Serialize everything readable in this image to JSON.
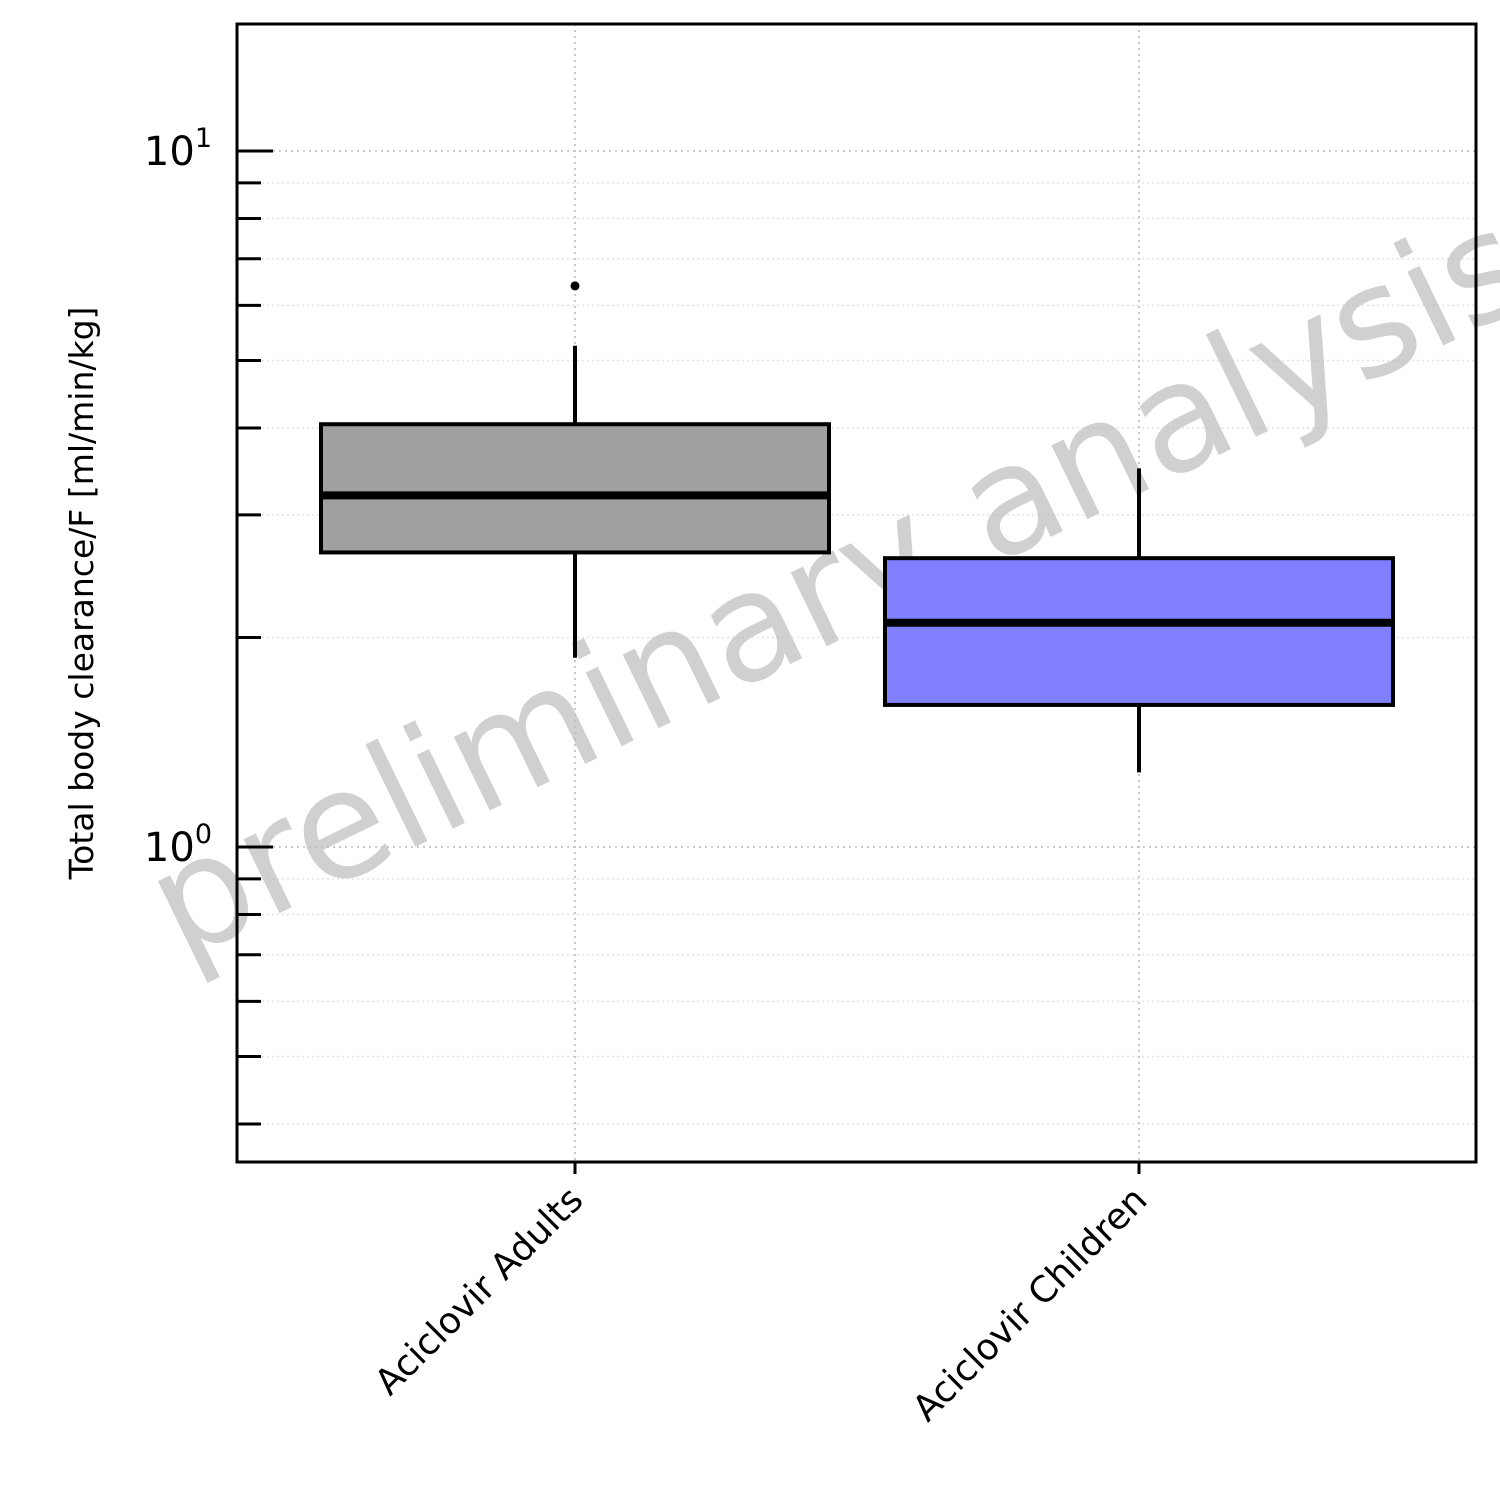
{
  "chart_data": {
    "type": "box",
    "ylabel": "Total body clearance/F [ml/min/kg]",
    "yscale": "log",
    "ylim": [
      0.36,
      17.5
    ],
    "major_ticks": [
      {
        "value": 1,
        "base": "10",
        "exponent": "0"
      },
      {
        "value": 10,
        "base": "10",
        "exponent": "1"
      }
    ],
    "minor_ticks": [
      0.4,
      0.5,
      0.6,
      0.7,
      0.8,
      0.9,
      2,
      3,
      4,
      5,
      6,
      7,
      8,
      9
    ],
    "grid": true,
    "categories": [
      "Aciclovir Adults",
      "Aciclovir Children"
    ],
    "boxes": [
      {
        "name": "Aciclovir Adults",
        "whisker_low": 1.87,
        "q1": 2.65,
        "median": 3.2,
        "q3": 4.05,
        "whisker_high": 5.25,
        "outliers": [
          6.4
        ],
        "color": "#a0a0a0"
      },
      {
        "name": "Aciclovir Children",
        "whisker_low": 1.28,
        "q1": 1.6,
        "median": 2.1,
        "q3": 2.6,
        "whisker_high": 3.5,
        "outliers": [],
        "color": "#7f7fff"
      }
    ],
    "watermark": "preliminary analysis"
  }
}
